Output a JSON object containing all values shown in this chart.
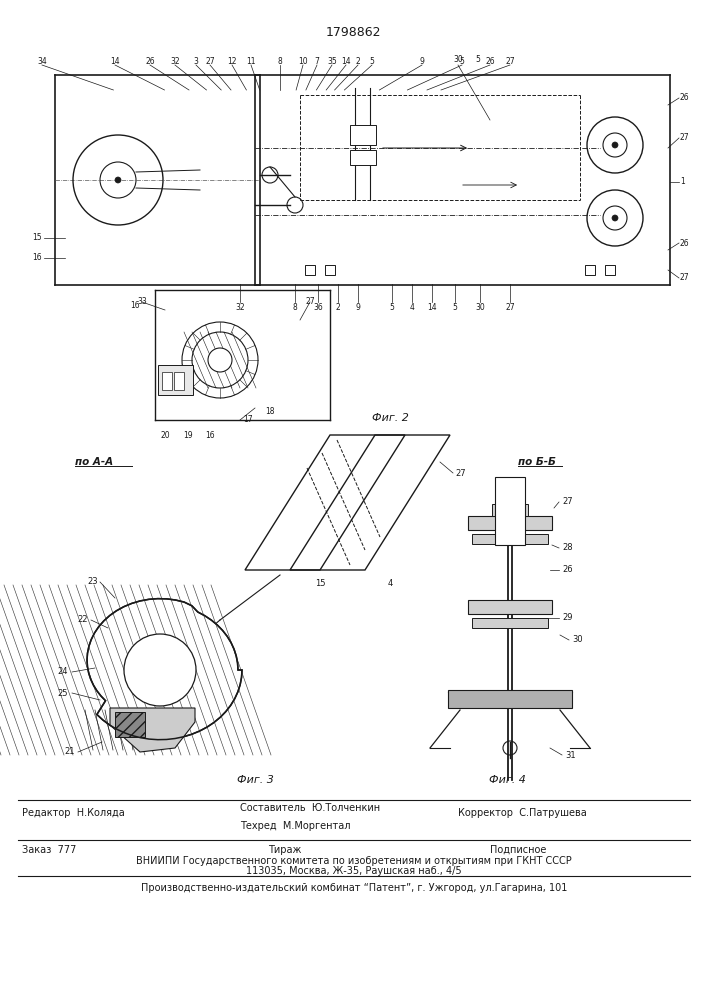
{
  "patent_number": "1798862",
  "fig1_label": "по А-А",
  "fig2_label": "Фиг. 2",
  "fig3_label": "Фиг. 3",
  "fig4_label": "Фиг. 4",
  "fig4b_label": "по Б-Б",
  "editor_line": "Редактор  Н.Коляда",
  "composer_line": "Составитель  Ю.Толченкин",
  "techred_line": "Техред  М.Моргентал",
  "corrector_line": "Корректор  С.Патрушева",
  "order_line": "Заказ  777",
  "tirazh_line": "Тираж",
  "podpisnoe_line": "Подписное",
  "vniiipi_line": "ВНИИПИ Государственного комитета по изобретениям и открытиям при ГКНТ СССР",
  "address_line": "113035, Москва, Ж-35, Раушская наб., 4/5",
  "production_line": "Производственно-издательский комбинат “Патент”, г. Ужгород, ул.Гагарина, 101",
  "bg_color": "#ffffff",
  "lc": "#1a1a1a"
}
